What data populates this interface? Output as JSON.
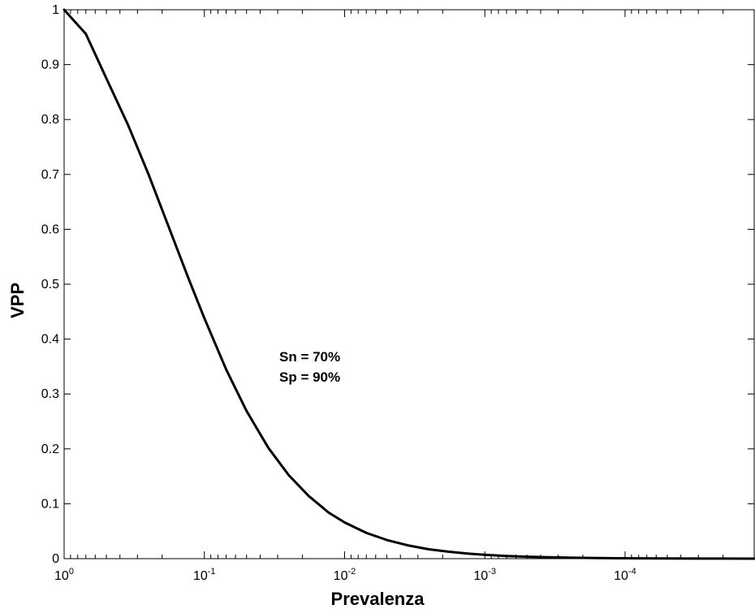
{
  "chart_data": {
    "type": "line",
    "title": "",
    "xlabel": "Prevalenza",
    "ylabel": "VPP",
    "x_scale": "log",
    "x_reversed": true,
    "xlim": [
      1,
      1.2e-05
    ],
    "ylim": [
      0,
      1
    ],
    "grid": false,
    "x_ticks": [
      {
        "value": 1,
        "base": "10",
        "exp": "0"
      },
      {
        "value": 0.1,
        "base": "10",
        "exp": "-1"
      },
      {
        "value": 0.01,
        "base": "10",
        "exp": "-2"
      },
      {
        "value": 0.001,
        "base": "10",
        "exp": "-3"
      },
      {
        "value": 0.0001,
        "base": "10",
        "exp": "-4"
      }
    ],
    "y_ticks": [
      0,
      0.1,
      0.2,
      0.3,
      0.4,
      0.5,
      0.6,
      0.7,
      0.8,
      0.9,
      1
    ],
    "y_tick_labels": [
      "0",
      "0.1",
      "0.2",
      "0.3",
      "0.4",
      "0.5",
      "0.6",
      "0.7",
      "0.8",
      "0.9",
      "1"
    ],
    "annotations": [
      "Sn = 70%",
      "Sp = 90%"
    ],
    "sensitivity": 0.7,
    "specificity": 0.9,
    "series": [
      {
        "x": [
          1,
          0.7,
          0.5,
          0.35,
          0.25,
          0.18,
          0.13,
          0.1,
          0.07,
          0.05,
          0.035,
          0.025,
          0.018,
          0.013,
          0.01,
          0.007,
          0.005,
          0.0035,
          0.0025,
          0.0018,
          0.0013,
          0.001,
          0.0007,
          0.0005,
          0.00035,
          0.00025,
          0.00018,
          0.00013,
          0.0001,
          7e-05,
          5e-05,
          3e-05,
          2e-05,
          1.2e-05
        ],
        "y": [
          1.0,
          0.956,
          0.875,
          0.79,
          0.7,
          0.605,
          0.511,
          0.438,
          0.345,
          0.269,
          0.202,
          0.152,
          0.114,
          0.084,
          0.066,
          0.047,
          0.034,
          0.024,
          0.017,
          0.0125,
          0.0091,
          0.007,
          0.0049,
          0.0035,
          0.0025,
          0.0018,
          0.0013,
          0.0009,
          0.0007,
          0.0005,
          0.00035,
          0.0002,
          0.00014,
          8e-05
        ]
      }
    ]
  }
}
